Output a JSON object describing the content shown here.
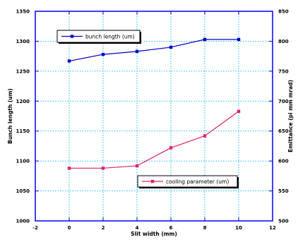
{
  "chart_data": {
    "type": "line",
    "title": "",
    "xlabel": "Slit width (mm)",
    "ylabel_left": "Bunch length (um)",
    "ylabel_right": "Emittance (pi mm mrad)",
    "xlim": [
      -2,
      12
    ],
    "ylim_left": [
      1000,
      1350
    ],
    "ylim_right": [
      500,
      850
    ],
    "x_ticks": [
      "-2",
      "0",
      "2",
      "4",
      "6",
      "8",
      "10",
      "12"
    ],
    "y_left_ticks": [
      "1000",
      "1050",
      "1100",
      "1150",
      "1200",
      "1250",
      "1300",
      "1350"
    ],
    "y_right_ticks": [
      "500",
      "550",
      "600",
      "650",
      "700",
      "750",
      "800",
      "850"
    ],
    "grid": true,
    "series": [
      {
        "name": "bunch length (um)",
        "axis": "left",
        "color": "#0000cc",
        "x": [
          0,
          2,
          4,
          6,
          8,
          10
        ],
        "values": [
          1267,
          1278,
          1283,
          1290,
          1303,
          1303
        ]
      },
      {
        "name": "cooling parameter (um)",
        "axis": "right",
        "color": "#e0206a",
        "x": [
          0,
          2,
          4,
          6,
          8,
          10
        ],
        "values": [
          588,
          588,
          592,
          622,
          642,
          683
        ]
      }
    ]
  }
}
